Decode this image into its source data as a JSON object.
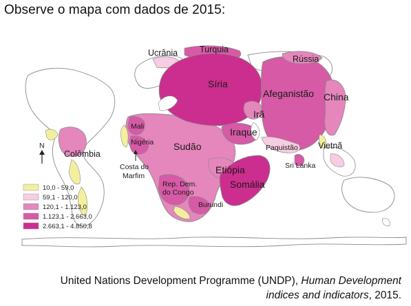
{
  "heading": "Observe o mapa com dados de 2015:",
  "colors": {
    "c1": "#f3ef9e",
    "c2": "#f7cde3",
    "c3": "#e586bd",
    "c4": "#d65aa6",
    "c5": "#cc2e8f"
  },
  "legend": [
    {
      "label": "10,0 - 59,0",
      "color": "#f3ef9e"
    },
    {
      "label": "59,1 - 120,0",
      "color": "#f7cde3"
    },
    {
      "label": "120,1 - 1.123,0",
      "color": "#e586bd"
    },
    {
      "label": "1.123,1 - 2.663,0",
      "color": "#d65aa6"
    },
    {
      "label": "2.663,1 - 4.850,8",
      "color": "#cc2e8f"
    }
  ],
  "north": "N",
  "labels": {
    "ucrania": "Ucrânia",
    "turquia": "Turquia",
    "russia": "Rússia",
    "siria": "Síria",
    "afeganistao": "Afeganistão",
    "china": "China",
    "ira": "Irã",
    "iraque": "Iraque",
    "mali": "Mali",
    "nigeria": "Nigéria",
    "sudao": "Sudão",
    "paquistao": "Paquistão",
    "vietna": "Vietnã",
    "colombia": "Colômbia",
    "costa_do": "Costa do",
    "marfim": "Marfim",
    "etiopia": "Etiópia",
    "sri_lanka": "Sri Lanka",
    "rep_dem": "Rep. Dem.",
    "do_congo": "do Congo",
    "somalia": "Somália",
    "burundi": "Burundi"
  },
  "caption": {
    "source": "United Nations Development Programme (UNDP), ",
    "title_line1": "Human Development",
    "title_line2": "indices and indicators",
    "year": ", 2015."
  }
}
